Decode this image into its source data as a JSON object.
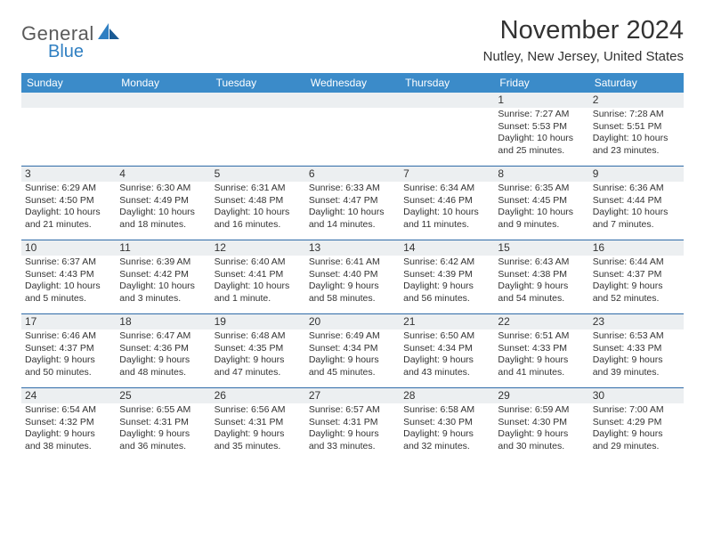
{
  "brand": {
    "general": "General",
    "blue": "Blue"
  },
  "title": "November 2024",
  "location": "Nutley, New Jersey, United States",
  "colors": {
    "header_bg": "#3b8bc9",
    "header_text": "#ffffff",
    "row_divider": "#2f6ba8",
    "daynum_bg": "#eceff1",
    "text": "#333333",
    "logo_gray": "#5a5a5a",
    "logo_blue": "#2f7fc2"
  },
  "day_names": [
    "Sunday",
    "Monday",
    "Tuesday",
    "Wednesday",
    "Thursday",
    "Friday",
    "Saturday"
  ],
  "weeks": [
    [
      {
        "n": "",
        "lines": []
      },
      {
        "n": "",
        "lines": []
      },
      {
        "n": "",
        "lines": []
      },
      {
        "n": "",
        "lines": []
      },
      {
        "n": "",
        "lines": []
      },
      {
        "n": "1",
        "lines": [
          "Sunrise: 7:27 AM",
          "Sunset: 5:53 PM",
          "Daylight: 10 hours and 25 minutes."
        ]
      },
      {
        "n": "2",
        "lines": [
          "Sunrise: 7:28 AM",
          "Sunset: 5:51 PM",
          "Daylight: 10 hours and 23 minutes."
        ]
      }
    ],
    [
      {
        "n": "3",
        "lines": [
          "Sunrise: 6:29 AM",
          "Sunset: 4:50 PM",
          "Daylight: 10 hours and 21 minutes."
        ]
      },
      {
        "n": "4",
        "lines": [
          "Sunrise: 6:30 AM",
          "Sunset: 4:49 PM",
          "Daylight: 10 hours and 18 minutes."
        ]
      },
      {
        "n": "5",
        "lines": [
          "Sunrise: 6:31 AM",
          "Sunset: 4:48 PM",
          "Daylight: 10 hours and 16 minutes."
        ]
      },
      {
        "n": "6",
        "lines": [
          "Sunrise: 6:33 AM",
          "Sunset: 4:47 PM",
          "Daylight: 10 hours and 14 minutes."
        ]
      },
      {
        "n": "7",
        "lines": [
          "Sunrise: 6:34 AM",
          "Sunset: 4:46 PM",
          "Daylight: 10 hours and 11 minutes."
        ]
      },
      {
        "n": "8",
        "lines": [
          "Sunrise: 6:35 AM",
          "Sunset: 4:45 PM",
          "Daylight: 10 hours and 9 minutes."
        ]
      },
      {
        "n": "9",
        "lines": [
          "Sunrise: 6:36 AM",
          "Sunset: 4:44 PM",
          "Daylight: 10 hours and 7 minutes."
        ]
      }
    ],
    [
      {
        "n": "10",
        "lines": [
          "Sunrise: 6:37 AM",
          "Sunset: 4:43 PM",
          "Daylight: 10 hours and 5 minutes."
        ]
      },
      {
        "n": "11",
        "lines": [
          "Sunrise: 6:39 AM",
          "Sunset: 4:42 PM",
          "Daylight: 10 hours and 3 minutes."
        ]
      },
      {
        "n": "12",
        "lines": [
          "Sunrise: 6:40 AM",
          "Sunset: 4:41 PM",
          "Daylight: 10 hours and 1 minute."
        ]
      },
      {
        "n": "13",
        "lines": [
          "Sunrise: 6:41 AM",
          "Sunset: 4:40 PM",
          "Daylight: 9 hours and 58 minutes."
        ]
      },
      {
        "n": "14",
        "lines": [
          "Sunrise: 6:42 AM",
          "Sunset: 4:39 PM",
          "Daylight: 9 hours and 56 minutes."
        ]
      },
      {
        "n": "15",
        "lines": [
          "Sunrise: 6:43 AM",
          "Sunset: 4:38 PM",
          "Daylight: 9 hours and 54 minutes."
        ]
      },
      {
        "n": "16",
        "lines": [
          "Sunrise: 6:44 AM",
          "Sunset: 4:37 PM",
          "Daylight: 9 hours and 52 minutes."
        ]
      }
    ],
    [
      {
        "n": "17",
        "lines": [
          "Sunrise: 6:46 AM",
          "Sunset: 4:37 PM",
          "Daylight: 9 hours and 50 minutes."
        ]
      },
      {
        "n": "18",
        "lines": [
          "Sunrise: 6:47 AM",
          "Sunset: 4:36 PM",
          "Daylight: 9 hours and 48 minutes."
        ]
      },
      {
        "n": "19",
        "lines": [
          "Sunrise: 6:48 AM",
          "Sunset: 4:35 PM",
          "Daylight: 9 hours and 47 minutes."
        ]
      },
      {
        "n": "20",
        "lines": [
          "Sunrise: 6:49 AM",
          "Sunset: 4:34 PM",
          "Daylight: 9 hours and 45 minutes."
        ]
      },
      {
        "n": "21",
        "lines": [
          "Sunrise: 6:50 AM",
          "Sunset: 4:34 PM",
          "Daylight: 9 hours and 43 minutes."
        ]
      },
      {
        "n": "22",
        "lines": [
          "Sunrise: 6:51 AM",
          "Sunset: 4:33 PM",
          "Daylight: 9 hours and 41 minutes."
        ]
      },
      {
        "n": "23",
        "lines": [
          "Sunrise: 6:53 AM",
          "Sunset: 4:33 PM",
          "Daylight: 9 hours and 39 minutes."
        ]
      }
    ],
    [
      {
        "n": "24",
        "lines": [
          "Sunrise: 6:54 AM",
          "Sunset: 4:32 PM",
          "Daylight: 9 hours and 38 minutes."
        ]
      },
      {
        "n": "25",
        "lines": [
          "Sunrise: 6:55 AM",
          "Sunset: 4:31 PM",
          "Daylight: 9 hours and 36 minutes."
        ]
      },
      {
        "n": "26",
        "lines": [
          "Sunrise: 6:56 AM",
          "Sunset: 4:31 PM",
          "Daylight: 9 hours and 35 minutes."
        ]
      },
      {
        "n": "27",
        "lines": [
          "Sunrise: 6:57 AM",
          "Sunset: 4:31 PM",
          "Daylight: 9 hours and 33 minutes."
        ]
      },
      {
        "n": "28",
        "lines": [
          "Sunrise: 6:58 AM",
          "Sunset: 4:30 PM",
          "Daylight: 9 hours and 32 minutes."
        ]
      },
      {
        "n": "29",
        "lines": [
          "Sunrise: 6:59 AM",
          "Sunset: 4:30 PM",
          "Daylight: 9 hours and 30 minutes."
        ]
      },
      {
        "n": "30",
        "lines": [
          "Sunrise: 7:00 AM",
          "Sunset: 4:29 PM",
          "Daylight: 9 hours and 29 minutes."
        ]
      }
    ]
  ]
}
